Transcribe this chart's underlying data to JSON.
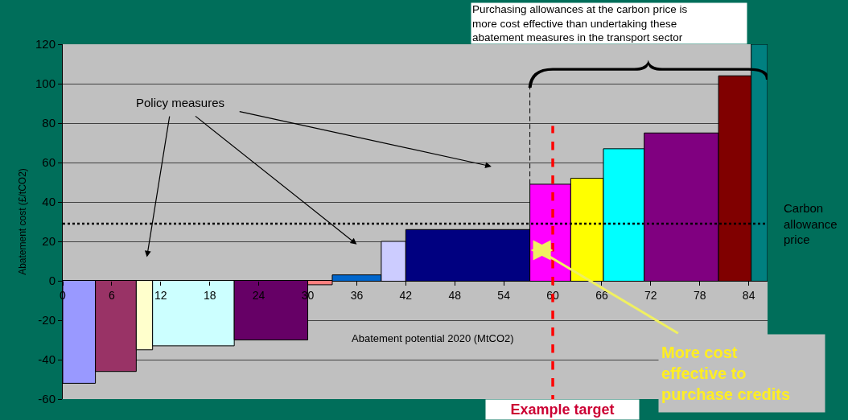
{
  "chart_data": {
    "type": "area",
    "xlabel": "Abatement potential 2020 (MtCO2)",
    "ylabel": "Abatement cost (£/tCO2)",
    "xlim": [
      0,
      86.3
    ],
    "xticks": [
      0,
      6,
      12,
      18,
      24,
      30,
      36,
      42,
      48,
      54,
      60,
      66,
      72,
      78,
      84
    ],
    "ylim": [
      -60,
      120
    ],
    "yticks": [
      -60,
      -40,
      -20,
      0,
      20,
      40,
      60,
      80,
      100,
      120
    ],
    "grid": "y",
    "series": [
      {
        "color": "#9999ff",
        "x": [
          0,
          4
        ],
        "values": [
          -52,
          -52
        ]
      },
      {
        "color": "#993366",
        "x": [
          4,
          9
        ],
        "values": [
          -46,
          -46
        ]
      },
      {
        "color": "#ffffcc",
        "x": [
          9,
          11
        ],
        "values": [
          -35,
          -35
        ]
      },
      {
        "color": "#ccffff",
        "x": [
          11,
          21
        ],
        "values": [
          -33,
          -33
        ]
      },
      {
        "color": "#660066",
        "x": [
          21,
          30
        ],
        "values": [
          -30,
          -30
        ]
      },
      {
        "color": "#ff8080",
        "x": [
          30,
          33
        ],
        "values": [
          -2,
          -2
        ]
      },
      {
        "color": "#0066cc",
        "x": [
          33,
          39
        ],
        "values": [
          3,
          3
        ]
      },
      {
        "color": "#ccccff",
        "x": [
          39,
          42
        ],
        "values": [
          20,
          20
        ]
      },
      {
        "color": "#000080",
        "x": [
          42,
          57.2
        ],
        "values": [
          26,
          26
        ]
      },
      {
        "color": "#ff00ff",
        "x": [
          57.2,
          62.2
        ],
        "values": [
          49,
          49
        ]
      },
      {
        "color": "#ffff00",
        "x": [
          62.2,
          66.2
        ],
        "values": [
          52,
          52
        ]
      },
      {
        "color": "#00ffff",
        "x": [
          66.2,
          71.2
        ],
        "values": [
          67,
          67
        ]
      },
      {
        "color": "#800080",
        "x": [
          71.2,
          80.3
        ],
        "values": [
          75,
          75
        ]
      },
      {
        "color": "#800000",
        "x": [
          80.3,
          84.3
        ],
        "values": [
          104,
          104
        ]
      },
      {
        "color": "#008080",
        "x": [
          84.3,
          86.3
        ],
        "values": [
          120,
          120
        ]
      }
    ],
    "ref_lines": [
      {
        "axis": "y",
        "value": 29,
        "label": "Carbon\nallowance\nprice",
        "color": "#000000",
        "line_style": "dotted"
      },
      {
        "axis": "x",
        "value": 60,
        "label": "Example target",
        "color": "#ff0000",
        "line_style": "dashed"
      }
    ],
    "annotations": [
      "Policy measures",
      "Purchasing allowances at the carbon price is\nmore cost effective than undertaking these\nabatement measures in the transport sector",
      "More cost\neffective to\npurchase credits"
    ]
  }
}
